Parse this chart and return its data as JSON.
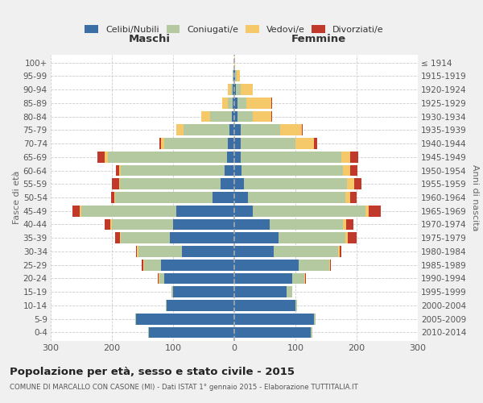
{
  "age_groups": [
    "0-4",
    "5-9",
    "10-14",
    "15-19",
    "20-24",
    "25-29",
    "30-34",
    "35-39",
    "40-44",
    "45-49",
    "50-54",
    "55-59",
    "60-64",
    "65-69",
    "70-74",
    "75-79",
    "80-84",
    "85-89",
    "90-94",
    "95-99",
    "100+"
  ],
  "birth_years": [
    "2010-2014",
    "2005-2009",
    "2000-2004",
    "1995-1999",
    "1990-1994",
    "1985-1989",
    "1980-1984",
    "1975-1979",
    "1970-1974",
    "1965-1969",
    "1960-1964",
    "1955-1959",
    "1950-1954",
    "1945-1949",
    "1940-1944",
    "1935-1939",
    "1930-1934",
    "1925-1929",
    "1920-1924",
    "1915-1919",
    "≤ 1914"
  ],
  "males": {
    "celibi": [
      140,
      160,
      110,
      100,
      115,
      120,
      85,
      105,
      100,
      95,
      35,
      22,
      16,
      12,
      10,
      8,
      4,
      2,
      2,
      1,
      0
    ],
    "coniugati": [
      1,
      2,
      2,
      2,
      8,
      28,
      72,
      80,
      100,
      155,
      160,
      165,
      170,
      195,
      105,
      75,
      35,
      8,
      3,
      1,
      0
    ],
    "vedovi": [
      0,
      0,
      0,
      0,
      1,
      1,
      2,
      2,
      2,
      2,
      1,
      1,
      2,
      5,
      5,
      12,
      15,
      10,
      5,
      1,
      0
    ],
    "divorziati": [
      0,
      0,
      0,
      0,
      1,
      2,
      2,
      8,
      10,
      12,
      5,
      12,
      5,
      12,
      2,
      0,
      0,
      0,
      0,
      0,
      0
    ]
  },
  "females": {
    "nubili": [
      125,
      130,
      100,
      85,
      95,
      105,
      65,
      72,
      58,
      30,
      22,
      16,
      12,
      10,
      10,
      10,
      5,
      5,
      2,
      1,
      0
    ],
    "coniugate": [
      2,
      3,
      3,
      10,
      20,
      50,
      105,
      110,
      120,
      185,
      160,
      168,
      165,
      165,
      90,
      65,
      25,
      15,
      8,
      3,
      0
    ],
    "vedove": [
      0,
      0,
      0,
      0,
      1,
      1,
      2,
      3,
      5,
      5,
      8,
      12,
      12,
      15,
      30,
      35,
      30,
      40,
      20,
      5,
      1
    ],
    "divorziate": [
      0,
      0,
      0,
      0,
      1,
      2,
      3,
      15,
      12,
      20,
      10,
      12,
      12,
      12,
      5,
      2,
      2,
      2,
      0,
      0,
      0
    ]
  },
  "color_celibi": "#3b6ea5",
  "color_coniugati": "#b5c9a0",
  "color_vedovi": "#f5c96a",
  "color_divorziati": "#c0392b",
  "title": "Popolazione per età, sesso e stato civile - 2015",
  "subtitle": "COMUNE DI MARCALLO CON CASONE (MI) - Dati ISTAT 1° gennaio 2015 - Elaborazione TUTTITALIA.IT",
  "xlabel_left": "Maschi",
  "xlabel_right": "Femmine",
  "ylabel_left": "Fasce di età",
  "ylabel_right": "Anni di nascita",
  "xlim": 300,
  "background": "#f0f0f0",
  "plot_bg": "#ffffff"
}
